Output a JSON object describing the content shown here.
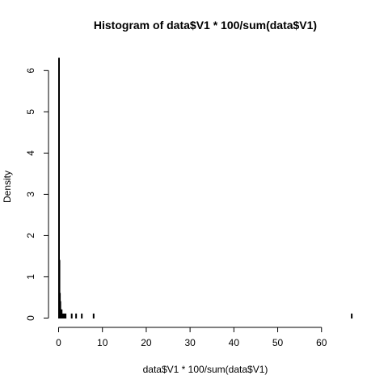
{
  "chart_data": {
    "type": "bar",
    "title": "Histogram of data$V1 * 100/sum(data$V1)",
    "xlabel": "data$V1 * 100/sum(data$V1)",
    "ylabel": "Density",
    "xlim": [
      0,
      67
    ],
    "ylim": [
      0,
      6.3
    ],
    "x_ticks": [
      0,
      10,
      20,
      30,
      40,
      50,
      60
    ],
    "y_ticks": [
      0,
      1,
      2,
      3,
      4,
      5,
      6
    ],
    "bin_width": 0.1,
    "bins": [
      {
        "x0": 0.0,
        "x1": 0.1,
        "density": 6.3
      },
      {
        "x0": 0.1,
        "x1": 0.2,
        "density": 1.4
      },
      {
        "x0": 0.2,
        "x1": 0.3,
        "density": 0.6
      },
      {
        "x0": 0.3,
        "x1": 0.4,
        "density": 0.4
      },
      {
        "x0": 0.4,
        "x1": 0.5,
        "density": 0.2
      },
      {
        "x0": 0.6,
        "x1": 0.7,
        "density": 0.2
      },
      {
        "x0": 0.9,
        "x1": 1.0,
        "density": 0.1
      },
      {
        "x0": 1.2,
        "x1": 1.3,
        "density": 0.1
      },
      {
        "x0": 1.5,
        "x1": 1.6,
        "density": 0.1
      },
      {
        "x0": 2.9,
        "x1": 3.0,
        "density": 0.1
      },
      {
        "x0": 3.9,
        "x1": 4.0,
        "density": 0.1
      },
      {
        "x0": 5.2,
        "x1": 5.3,
        "density": 0.1
      },
      {
        "x0": 7.9,
        "x1": 8.0,
        "density": 0.1
      },
      {
        "x0": 66.8,
        "x1": 66.9,
        "density": 0.1
      }
    ]
  }
}
